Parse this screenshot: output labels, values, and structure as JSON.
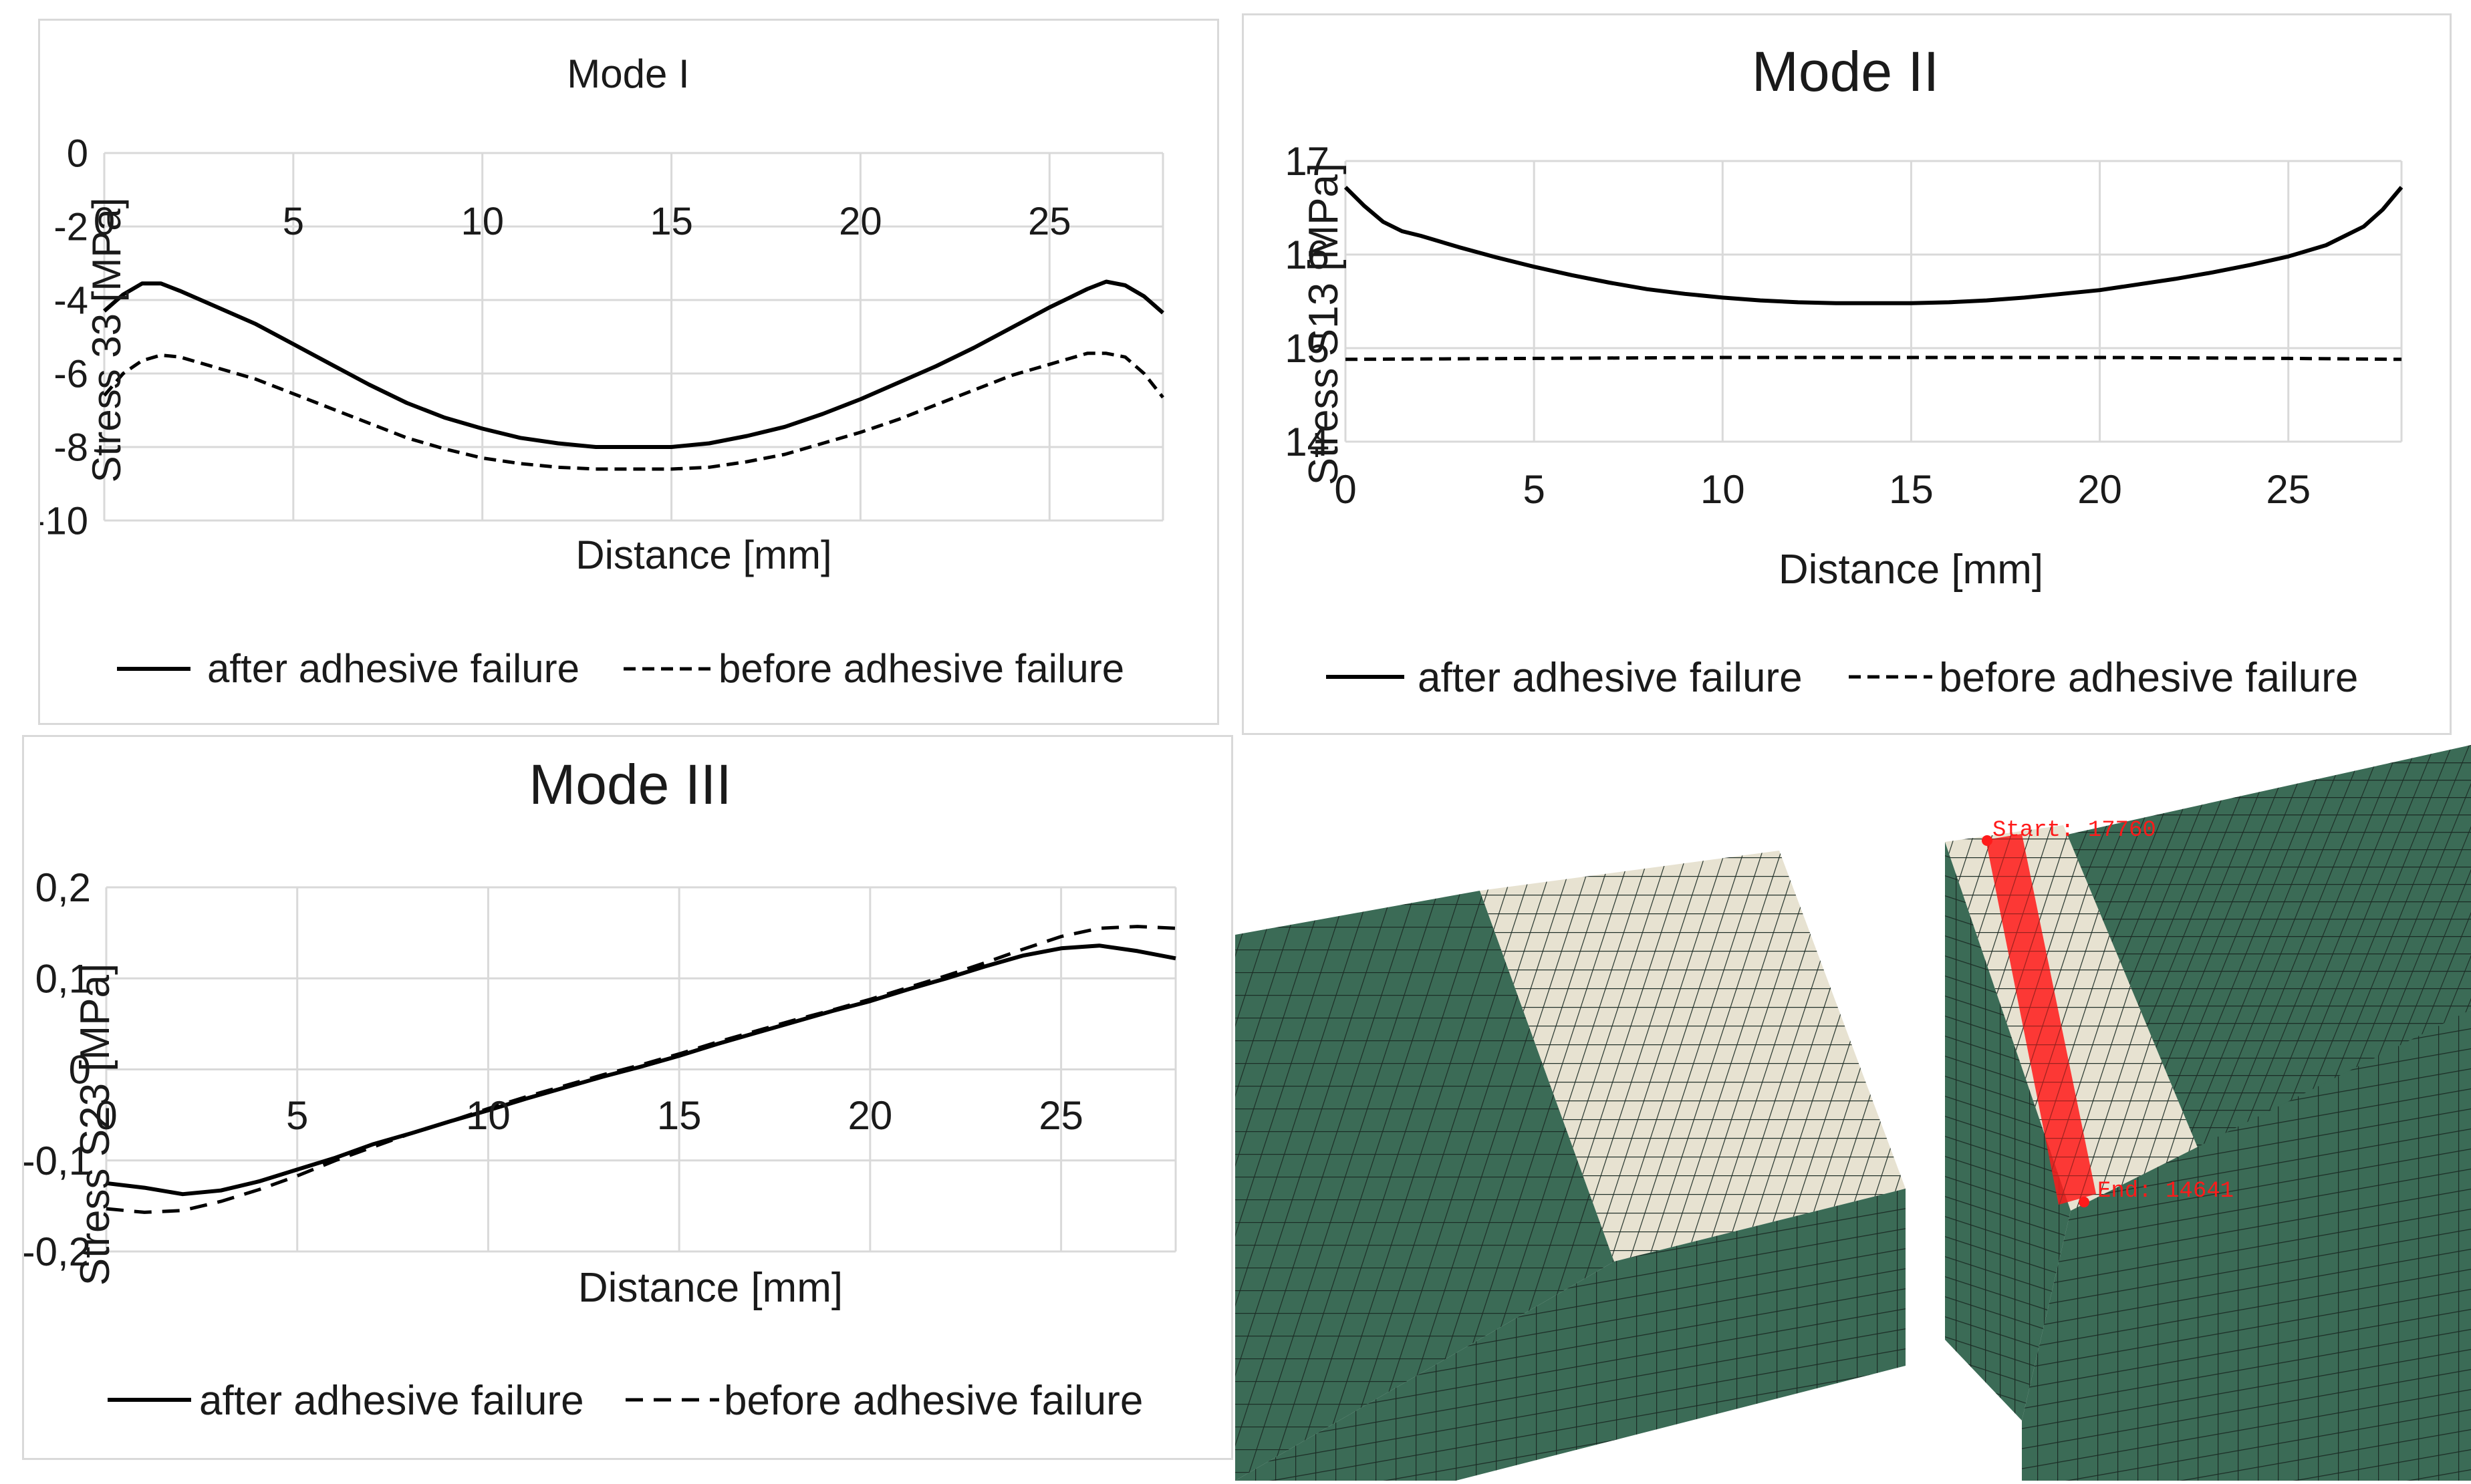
{
  "chart_data": [
    {
      "type": "line",
      "title": "Mode I",
      "xlabel": "Distance [mm]",
      "ylabel": "Stress 33 [MPa]",
      "xlim": [
        0,
        28
      ],
      "ylim": [
        -10,
        0
      ],
      "xticks": [
        0,
        5,
        10,
        15,
        20,
        25
      ],
      "xtick_labels": [
        "0",
        "5",
        "10",
        "15",
        "20",
        "25"
      ],
      "yticks": [
        0,
        -2,
        -4,
        -6,
        -8,
        -10
      ],
      "ytick_labels": [
        "0",
        "-2",
        "-4",
        "-6",
        "-8",
        "-10"
      ],
      "grid": true,
      "legend_position": "bottom",
      "series": [
        {
          "name": "after adhesive failure",
          "style": "solid",
          "x": [
            0,
            0.5,
            1,
            1.5,
            2,
            3,
            4,
            5,
            6,
            7,
            8,
            9,
            10,
            11,
            12,
            13,
            14,
            15,
            16,
            17,
            18,
            19,
            20,
            21,
            22,
            23,
            24,
            25,
            25.5,
            26,
            26.5,
            27,
            27.5,
            28
          ],
          "y": [
            -4.3,
            -3.85,
            -3.55,
            -3.55,
            -3.75,
            -4.2,
            -4.65,
            -5.2,
            -5.75,
            -6.3,
            -6.8,
            -7.2,
            -7.5,
            -7.75,
            -7.9,
            -8.0,
            -8.0,
            -8.0,
            -7.9,
            -7.7,
            -7.45,
            -7.1,
            -6.7,
            -6.25,
            -5.8,
            -5.3,
            -4.75,
            -4.2,
            -3.95,
            -3.7,
            -3.5,
            -3.6,
            -3.9,
            -4.35
          ]
        },
        {
          "name": "before adhesive failure",
          "style": "dashed",
          "x": [
            0,
            0.5,
            1,
            1.5,
            2,
            3,
            4,
            5,
            6,
            7,
            8,
            9,
            10,
            11,
            12,
            13,
            14,
            15,
            16,
            17,
            18,
            19,
            20,
            21,
            22,
            23,
            24,
            25,
            25.5,
            26,
            26.5,
            27,
            27.5,
            28
          ],
          "y": [
            -6.6,
            -6.0,
            -5.65,
            -5.5,
            -5.55,
            -5.85,
            -6.15,
            -6.55,
            -6.95,
            -7.35,
            -7.75,
            -8.05,
            -8.3,
            -8.45,
            -8.55,
            -8.6,
            -8.6,
            -8.6,
            -8.55,
            -8.4,
            -8.2,
            -7.9,
            -7.6,
            -7.25,
            -6.85,
            -6.45,
            -6.05,
            -5.75,
            -5.6,
            -5.45,
            -5.45,
            -5.55,
            -6.0,
            -6.65
          ]
        }
      ]
    },
    {
      "type": "line",
      "title": "Mode II",
      "xlabel": "Distance [mm]",
      "ylabel": "Stress S13 [MPa]",
      "xlim": [
        0,
        28
      ],
      "ylim": [
        14,
        17
      ],
      "xticks": [
        0,
        5,
        10,
        15,
        20,
        25
      ],
      "xtick_labels": [
        "0",
        "5",
        "10",
        "15",
        "20",
        "25"
      ],
      "yticks": [
        14,
        15,
        16,
        17
      ],
      "ytick_labels": [
        "14",
        "15",
        "16",
        "17"
      ],
      "grid": true,
      "legend_position": "bottom",
      "series": [
        {
          "name": "after adhesive failure",
          "style": "solid",
          "x": [
            0,
            0.5,
            1,
            1.5,
            2,
            3,
            4,
            5,
            6,
            7,
            8,
            9,
            10,
            11,
            12,
            13,
            14,
            15,
            16,
            17,
            18,
            19,
            20,
            21,
            22,
            23,
            24,
            25,
            26,
            26.5,
            27,
            27.5,
            28
          ],
          "y": [
            16.72,
            16.52,
            16.35,
            16.25,
            16.2,
            16.08,
            15.97,
            15.87,
            15.78,
            15.7,
            15.63,
            15.58,
            15.54,
            15.51,
            15.49,
            15.48,
            15.48,
            15.48,
            15.49,
            15.51,
            15.54,
            15.58,
            15.62,
            15.68,
            15.74,
            15.81,
            15.89,
            15.98,
            16.1,
            16.2,
            16.3,
            16.48,
            16.72
          ]
        },
        {
          "name": "before adhesive failure",
          "style": "dashed",
          "x": [
            0,
            5,
            10,
            15,
            20,
            25,
            28
          ],
          "y": [
            14.88,
            14.89,
            14.9,
            14.9,
            14.9,
            14.89,
            14.88
          ]
        }
      ]
    },
    {
      "type": "line",
      "title": "Mode III",
      "xlabel": "Distance [mm]",
      "ylabel": "Stress S23 [MPa]",
      "xlim": [
        0,
        28
      ],
      "ylim": [
        -0.2,
        0.2
      ],
      "xticks": [
        0,
        5,
        10,
        15,
        20,
        25
      ],
      "xtick_labels": [
        "0",
        "5",
        "10",
        "15",
        "20",
        "25"
      ],
      "yticks": [
        0.2,
        0.1,
        0,
        -0.1,
        -0.2
      ],
      "ytick_labels": [
        "0,2",
        "0,1",
        "0",
        "-0,1",
        "-0,2"
      ],
      "grid": true,
      "legend_position": "bottom",
      "series": [
        {
          "name": "after adhesive failure",
          "style": "solid",
          "x": [
            0,
            1,
            2,
            3,
            4,
            5,
            6,
            7,
            8,
            9,
            10,
            11,
            12,
            13,
            14,
            15,
            16,
            17,
            18,
            19,
            20,
            21,
            22,
            23,
            24,
            25,
            26,
            27,
            28
          ],
          "y": [
            -0.125,
            -0.13,
            -0.137,
            -0.133,
            -0.123,
            -0.11,
            -0.097,
            -0.082,
            -0.07,
            -0.057,
            -0.045,
            -0.032,
            -0.02,
            -0.008,
            0.003,
            0.015,
            0.028,
            0.04,
            0.052,
            0.064,
            0.075,
            0.088,
            0.1,
            0.113,
            0.125,
            0.133,
            0.136,
            0.13,
            0.122
          ]
        },
        {
          "name": "before adhesive failure",
          "style": "dashed",
          "x": [
            0,
            1,
            2,
            3,
            4,
            5,
            6,
            7,
            8,
            9,
            10,
            11,
            12,
            13,
            14,
            15,
            16,
            17,
            18,
            19,
            20,
            21,
            22,
            23,
            24,
            25,
            26,
            27,
            28
          ],
          "y": [
            -0.153,
            -0.157,
            -0.155,
            -0.145,
            -0.132,
            -0.117,
            -0.1,
            -0.085,
            -0.07,
            -0.057,
            -0.043,
            -0.03,
            -0.018,
            -0.006,
            0.005,
            0.017,
            0.03,
            0.042,
            0.054,
            0.065,
            0.077,
            0.09,
            0.103,
            0.117,
            0.132,
            0.146,
            0.155,
            0.157,
            0.155
          ]
        }
      ]
    }
  ],
  "fem_model": {
    "labels": {
      "start": "Start: 17760",
      "end": "End: 14641"
    },
    "colors": {
      "solid": "#3b6b56",
      "adhesive": "#e7e2d1",
      "mesh_line": "#1c2c25",
      "path": "#ff1a1a"
    }
  }
}
